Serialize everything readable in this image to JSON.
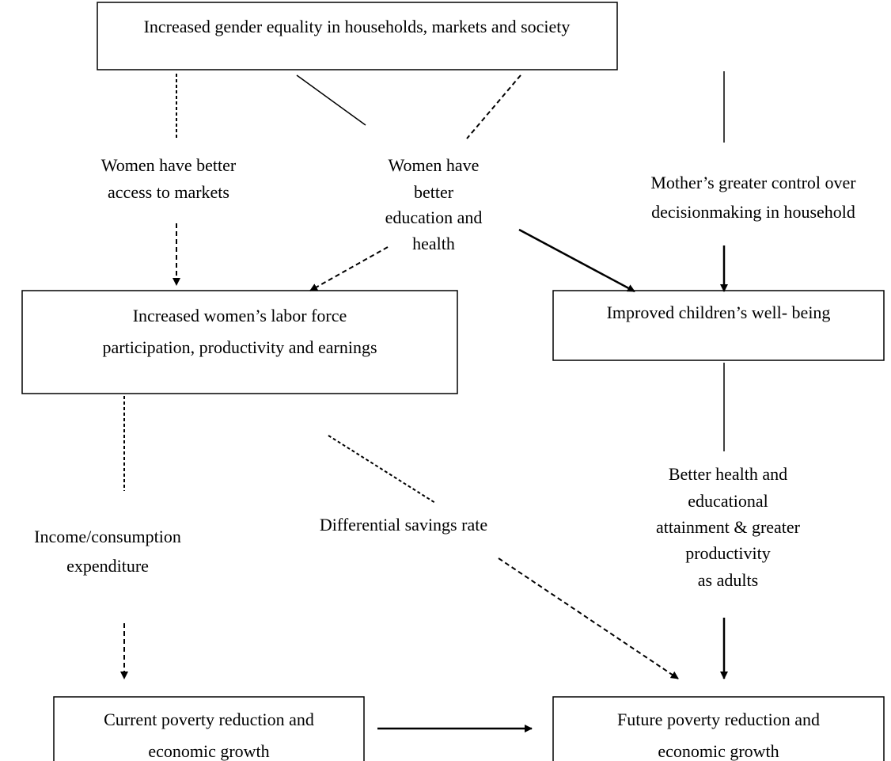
{
  "nodes": [
    {
      "lines": [
        "Increased gender equality in households, markets and society"
      ]
    },
    {
      "lines": [
        "Increased women’s labor force",
        "participation, productivity and earnings"
      ]
    },
    {
      "lines": [
        "Improved children’s well- being"
      ]
    },
    {
      "lines": [
        "Current poverty reduction and",
        "economic growth"
      ]
    },
    {
      "lines": [
        "Future poverty reduction and",
        "economic growth"
      ]
    }
  ],
  "labels": [
    {
      "lines": [
        "Women have better",
        "access to markets"
      ]
    },
    {
      "lines": [
        "Women have",
        "better",
        "education and",
        "health"
      ]
    },
    {
      "lines": [
        "Mother’s greater control over",
        "decisionmaking in household"
      ]
    },
    {
      "lines": [
        "Differential savings rate"
      ]
    },
    {
      "lines": [
        "Income/consumption",
        "expenditure"
      ]
    },
    {
      "lines": [
        "Better health and",
        "educational",
        "attainment & greater",
        "productivity",
        "as adults"
      ]
    }
  ]
}
